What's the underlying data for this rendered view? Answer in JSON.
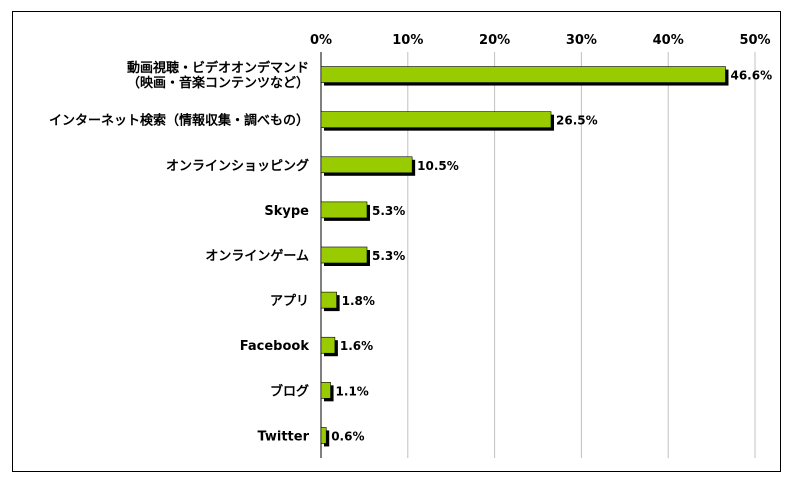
{
  "chart_data": {
    "type": "bar",
    "orientation": "horizontal",
    "categories": [
      [
        "動画視聴・ビデオオンデマンド",
        "（映画・音楽コンテンツなど）"
      ],
      [
        "インターネット検索（情報収集・調べもの）"
      ],
      [
        "オンラインショッピング"
      ],
      [
        "Skype"
      ],
      [
        "オンラインゲーム"
      ],
      [
        "アプリ"
      ],
      [
        "Facebook"
      ],
      [
        "ブログ"
      ],
      [
        "Twitter"
      ]
    ],
    "values": [
      46.6,
      26.5,
      10.5,
      5.3,
      5.3,
      1.8,
      1.6,
      1.1,
      0.6
    ],
    "value_labels": [
      "46.6%",
      "26.5%",
      "10.5%",
      "5.3%",
      "5.3%",
      "1.8%",
      "1.6%",
      "1.1%",
      "0.6%"
    ],
    "xticks": [
      "0%",
      "10%",
      "20%",
      "30%",
      "40%",
      "50%"
    ],
    "xlim": [
      0,
      50
    ],
    "grid": true,
    "axis_position": "top",
    "colors": {
      "bar": "#99cc00",
      "shadow": "#000000",
      "grid": "#c0c0c0"
    },
    "title": "",
    "xlabel": "",
    "ylabel": ""
  }
}
